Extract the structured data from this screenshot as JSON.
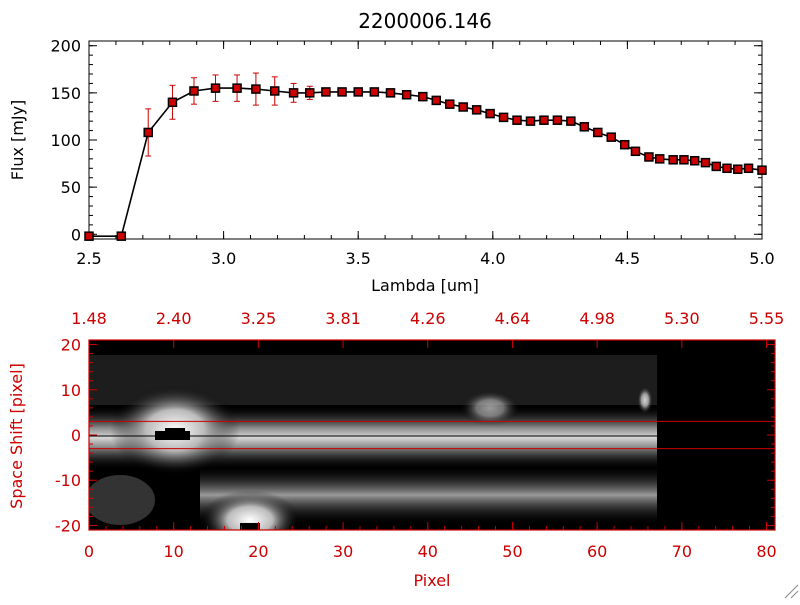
{
  "chart_data": [
    {
      "type": "line",
      "title": "2200006.146",
      "xlabel": "Lambda [um]",
      "ylabel": "Flux [mJy]",
      "xlim": [
        2.5,
        5.0
      ],
      "ylim": [
        -5,
        205
      ],
      "xticks": [
        "2.5",
        "3.0",
        "3.5",
        "4.0",
        "4.5",
        "5.0"
      ],
      "yticks": [
        "0",
        "50",
        "100",
        "150",
        "200"
      ],
      "line_color": "#000000",
      "marker_color": "#cc0000",
      "errorbar_color": "#cc0000",
      "x": [
        2.5,
        2.62,
        2.72,
        2.81,
        2.89,
        2.97,
        3.05,
        3.12,
        3.19,
        3.26,
        3.32,
        3.38,
        3.44,
        3.5,
        3.56,
        3.62,
        3.68,
        3.74,
        3.79,
        3.84,
        3.89,
        3.94,
        3.99,
        4.04,
        4.09,
        4.14,
        4.19,
        4.24,
        4.29,
        4.34,
        4.39,
        4.44,
        4.49,
        4.53,
        4.58,
        4.62,
        4.67,
        4.71,
        4.75,
        4.79,
        4.83,
        4.87,
        4.91,
        4.95,
        5.0
      ],
      "y": [
        -2,
        -2,
        108,
        140,
        152,
        155,
        155,
        154,
        152,
        150,
        150,
        151,
        151,
        151,
        151,
        150,
        148,
        146,
        142,
        138,
        135,
        132,
        128,
        124,
        121,
        120,
        121,
        121,
        120,
        114,
        108,
        103,
        95,
        88,
        82,
        80,
        79,
        79,
        78,
        76,
        72,
        70,
        69,
        70,
        68
      ],
      "yerr": [
        0,
        0,
        25,
        18,
        14,
        14,
        14,
        17,
        15,
        10,
        7,
        4,
        2,
        2,
        2,
        2,
        2,
        2,
        2,
        2,
        2,
        2,
        2,
        2,
        2,
        2,
        2,
        2,
        2,
        2,
        2,
        2,
        2,
        2,
        2,
        2,
        2,
        2,
        2,
        2,
        2,
        2,
        2,
        2,
        2
      ]
    },
    {
      "type": "heatmap",
      "xlabel": "Pixel",
      "ylabel": "Space Shift [pixel]",
      "xlim": [
        0,
        81
      ],
      "ylim": [
        -21,
        21
      ],
      "xticks": [
        "0",
        "10",
        "20",
        "30",
        "40",
        "50",
        "60",
        "70",
        "80"
      ],
      "yticks": [
        "-20",
        "-10",
        "0",
        "10",
        "20"
      ],
      "top_ticks": [
        "1.48",
        "2.40",
        "3.25",
        "3.81",
        "4.26",
        "4.64",
        "4.98",
        "5.30",
        "5.55"
      ],
      "slit_lines": [
        3,
        -3
      ],
      "colormap": "grayscale",
      "axis_color": "#cc0000"
    }
  ]
}
